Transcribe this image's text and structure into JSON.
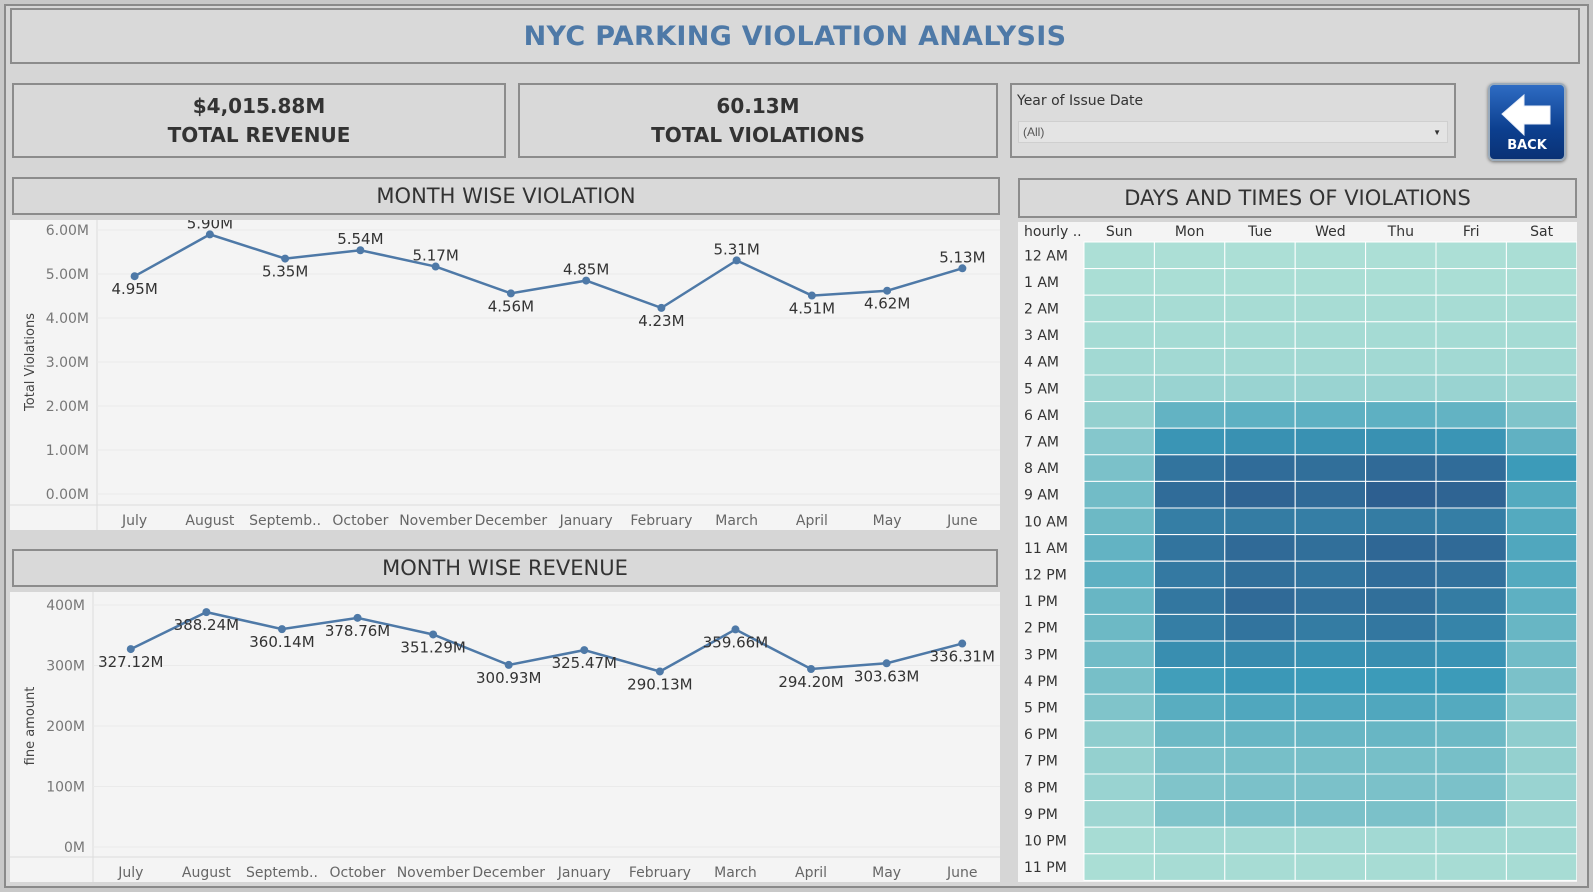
{
  "header": {
    "title": "NYC PARKING VIOLATION ANALYSIS"
  },
  "kpis": {
    "revenue": {
      "value": "$4,015.88M",
      "label": "TOTAL REVENUE"
    },
    "violations": {
      "value": "60.13M",
      "label": "TOTAL VIOLATIONS"
    }
  },
  "filter": {
    "label": "Year of Issue Date",
    "value": "(All)"
  },
  "back_button": {
    "label": "BACK"
  },
  "sections": {
    "month_violation": "MONTH WISE VIOLATION",
    "month_revenue": "MONTH WISE REVENUE",
    "days_times": "DAYS AND TIMES OF VIOLATIONS"
  },
  "chart_data": [
    {
      "type": "line",
      "title": "MONTH WISE VIOLATION",
      "ylabel": "Total Violations",
      "xlabel": "",
      "categories": [
        "July",
        "August",
        "Septemb..",
        "October",
        "November",
        "December",
        "January",
        "February",
        "March",
        "April",
        "May",
        "June"
      ],
      "values": [
        4.95,
        5.9,
        5.35,
        5.54,
        5.17,
        4.56,
        4.85,
        4.23,
        5.31,
        4.51,
        4.62,
        5.13
      ],
      "data_labels": [
        "4.95M",
        "5.90M",
        "5.35M",
        "5.54M",
        "5.17M",
        "4.56M",
        "4.85M",
        "4.23M",
        "5.31M",
        "4.51M",
        "4.62M",
        "5.13M"
      ],
      "yticks": [
        "0.00M",
        "1.00M",
        "2.00M",
        "3.00M",
        "4.00M",
        "5.00M",
        "6.00M"
      ],
      "ylim": [
        0,
        6.0
      ],
      "color": "#4e79a7"
    },
    {
      "type": "line",
      "title": "MONTH WISE REVENUE",
      "ylabel": "fine amount",
      "xlabel": "",
      "categories": [
        "July",
        "August",
        "Septemb..",
        "October",
        "November",
        "December",
        "January",
        "February",
        "March",
        "April",
        "May",
        "June"
      ],
      "values": [
        327.12,
        388.24,
        360.14,
        378.76,
        351.29,
        300.93,
        325.47,
        290.13,
        359.66,
        294.2,
        303.63,
        336.31
      ],
      "data_labels": [
        "327.12M",
        "388.24M",
        "360.14M",
        "378.76M",
        "351.29M",
        "300.93M",
        "325.47M",
        "290.13M",
        "359.66M",
        "294.20M",
        "303.63M",
        "336.31M"
      ],
      "yticks": [
        "0M",
        "100M",
        "200M",
        "300M",
        "400M"
      ],
      "ylim": [
        0,
        400
      ],
      "color": "#4e79a7"
    },
    {
      "type": "heatmap",
      "title": "DAYS AND TIMES OF VIOLATIONS",
      "row_header": "hourly ..",
      "columns": [
        "Sun",
        "Mon",
        "Tue",
        "Wed",
        "Thu",
        "Fri",
        "Sat"
      ],
      "rows": [
        "12 AM",
        "1 AM",
        "2 AM",
        "3 AM",
        "4 AM",
        "5 AM",
        "6 AM",
        "7 AM",
        "8 AM",
        "9 AM",
        "10 AM",
        "11 AM",
        "12 PM",
        "1 PM",
        "2 PM",
        "3 PM",
        "4 PM",
        "5 PM",
        "6 PM",
        "7 PM",
        "8 PM",
        "9 PM",
        "10 PM",
        "11 PM"
      ],
      "intensity": [
        [
          0.04,
          0.04,
          0.04,
          0.04,
          0.04,
          0.04,
          0.05
        ],
        [
          0.05,
          0.05,
          0.05,
          0.05,
          0.05,
          0.05,
          0.05
        ],
        [
          0.06,
          0.06,
          0.06,
          0.06,
          0.06,
          0.06,
          0.06
        ],
        [
          0.07,
          0.07,
          0.07,
          0.07,
          0.07,
          0.07,
          0.07
        ],
        [
          0.08,
          0.08,
          0.08,
          0.08,
          0.08,
          0.08,
          0.08
        ],
        [
          0.1,
          0.12,
          0.12,
          0.12,
          0.12,
          0.12,
          0.1
        ],
        [
          0.14,
          0.34,
          0.36,
          0.36,
          0.36,
          0.34,
          0.22
        ],
        [
          0.2,
          0.55,
          0.58,
          0.58,
          0.58,
          0.55,
          0.35
        ],
        [
          0.24,
          0.8,
          0.86,
          0.84,
          0.88,
          0.86,
          0.5
        ],
        [
          0.28,
          0.86,
          0.92,
          0.88,
          0.96,
          0.92,
          0.4
        ],
        [
          0.3,
          0.72,
          0.74,
          0.72,
          0.74,
          0.72,
          0.4
        ],
        [
          0.34,
          0.8,
          0.88,
          0.84,
          0.9,
          0.88,
          0.42
        ],
        [
          0.36,
          0.76,
          0.84,
          0.8,
          0.86,
          0.82,
          0.4
        ],
        [
          0.32,
          0.78,
          0.88,
          0.82,
          0.84,
          0.74,
          0.36
        ],
        [
          0.3,
          0.72,
          0.8,
          0.74,
          0.78,
          0.68,
          0.32
        ],
        [
          0.28,
          0.6,
          0.62,
          0.58,
          0.6,
          0.56,
          0.28
        ],
        [
          0.26,
          0.48,
          0.52,
          0.5,
          0.5,
          0.5,
          0.24
        ],
        [
          0.22,
          0.38,
          0.42,
          0.42,
          0.42,
          0.4,
          0.2
        ],
        [
          0.16,
          0.3,
          0.32,
          0.32,
          0.32,
          0.3,
          0.16
        ],
        [
          0.14,
          0.24,
          0.26,
          0.26,
          0.26,
          0.26,
          0.14
        ],
        [
          0.12,
          0.22,
          0.24,
          0.24,
          0.24,
          0.24,
          0.12
        ],
        [
          0.1,
          0.22,
          0.24,
          0.24,
          0.24,
          0.22,
          0.1
        ],
        [
          0.06,
          0.08,
          0.08,
          0.08,
          0.08,
          0.08,
          0.08
        ],
        [
          0.05,
          0.06,
          0.06,
          0.06,
          0.06,
          0.06,
          0.06
        ]
      ],
      "color_low": "#b6e5d8",
      "color_high": "#2c5a8c"
    }
  ]
}
